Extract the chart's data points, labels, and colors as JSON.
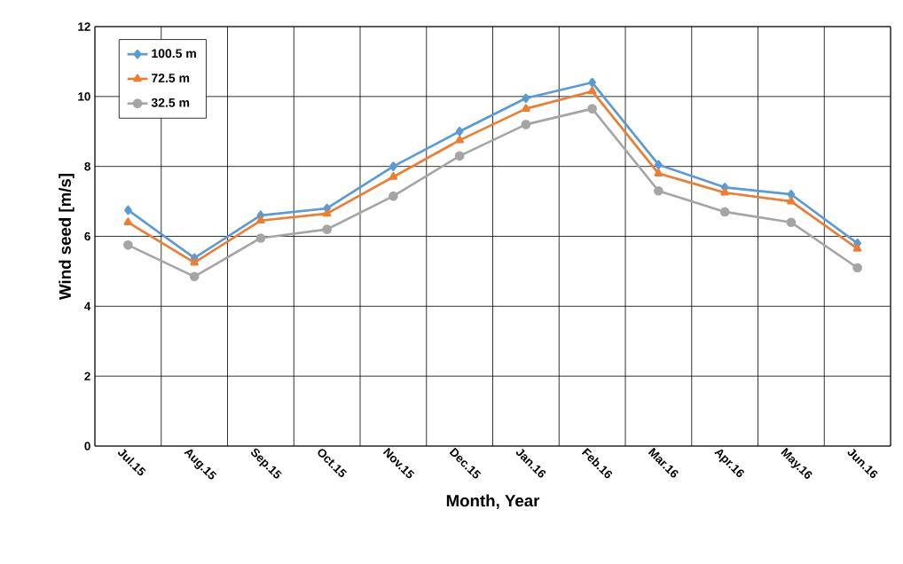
{
  "chart_data": {
    "type": "line",
    "xlabel": "Month, Year",
    "ylabel": "Wind seed [m/s]",
    "categories": [
      "Jul.15",
      "Aug.15",
      "Sep.15",
      "Oct.15",
      "Nov.15",
      "Dec.15",
      "Jan.16",
      "Feb.16",
      "Mar.16",
      "Apr.16",
      "May.16",
      "Jun.16"
    ],
    "series": [
      {
        "name": "100.5 m",
        "color": "#5b9bd5",
        "marker": "diamond",
        "values": [
          6.75,
          5.38,
          6.6,
          6.8,
          8.0,
          9.0,
          9.95,
          10.4,
          8.05,
          7.4,
          7.2,
          5.8
        ]
      },
      {
        "name": "72.5 m",
        "color": "#ed7d31",
        "marker": "triangle",
        "values": [
          6.4,
          5.25,
          6.45,
          6.65,
          7.7,
          8.75,
          9.65,
          10.15,
          7.8,
          7.25,
          7.0,
          5.65
        ]
      },
      {
        "name": "32.5 m",
        "color": "#a5a5a5",
        "marker": "circle",
        "values": [
          5.75,
          4.85,
          5.95,
          6.2,
          7.15,
          8.3,
          9.2,
          9.65,
          7.3,
          6.7,
          6.4,
          5.1
        ]
      }
    ],
    "ylim": [
      0,
      12
    ],
    "yticks": [
      0,
      2,
      4,
      6,
      8,
      10,
      12
    ],
    "grid": true,
    "legend": "top left",
    "line_style": "solid"
  }
}
